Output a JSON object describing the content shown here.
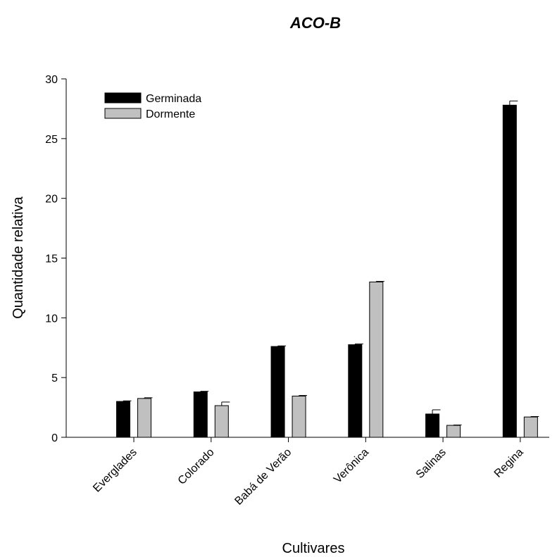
{
  "chart_data": {
    "type": "bar",
    "title": "ACO-B",
    "xlabel": "Cultivares",
    "ylabel": "Quantidade relativa",
    "categories": [
      "Everglades",
      "Colorado",
      "Babá de Verão",
      "Verônica",
      "Salinas",
      "Regina"
    ],
    "series": [
      {
        "name": "Germinada",
        "color": "#000000",
        "values": [
          3.0,
          3.8,
          7.6,
          7.75,
          1.95,
          27.8
        ],
        "errors": [
          0.05,
          0.05,
          0.05,
          0.07,
          0.35,
          0.35
        ]
      },
      {
        "name": "Dormente",
        "color": "#c0c0c0",
        "values": [
          3.25,
          2.65,
          3.45,
          13.0,
          1.0,
          1.7
        ],
        "errors": [
          0.06,
          0.3,
          0.05,
          0.05,
          0.03,
          0.04
        ]
      }
    ],
    "ylim": [
      0,
      30
    ],
    "yticks": [
      0,
      5,
      10,
      15,
      20,
      25,
      30
    ],
    "grid": false,
    "legend_position": "top-left"
  }
}
